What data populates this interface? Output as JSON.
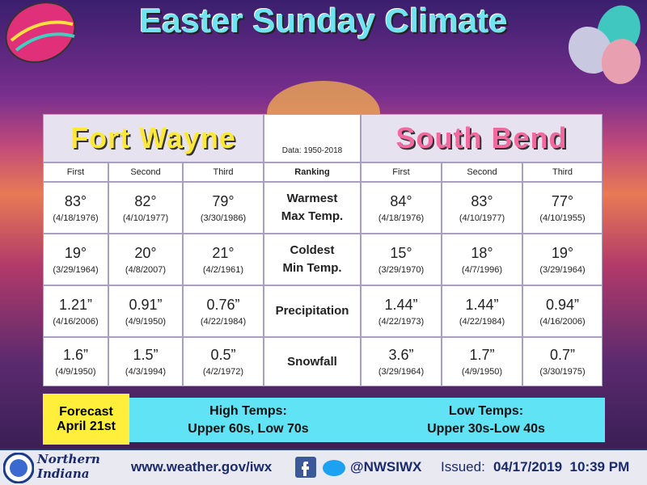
{
  "title": "Easter Sunday Climate",
  "table": {
    "left_city": "Fort Wayne",
    "right_city": "South Bend",
    "data_note": "Data: 1950-2018",
    "header": [
      "First",
      "Second",
      "Third",
      "Ranking",
      "First",
      "Second",
      "Third"
    ],
    "rows": [
      {
        "label": [
          "Warmest",
          "Max Temp."
        ],
        "fort_wayne": [
          {
            "value": "83°",
            "date": "(4/18/1976)"
          },
          {
            "value": "82°",
            "date": "(4/10/1977)"
          },
          {
            "value": "79°",
            "date": "(3/30/1986)"
          }
        ],
        "south_bend": [
          {
            "value": "84°",
            "date": "(4/18/1976)"
          },
          {
            "value": "83°",
            "date": "(4/10/1977)"
          },
          {
            "value": "77°",
            "date": "(4/10/1955)"
          }
        ]
      },
      {
        "label": [
          "Coldest",
          "Min Temp."
        ],
        "fort_wayne": [
          {
            "value": "19°",
            "date": "(3/29/1964)"
          },
          {
            "value": "20°",
            "date": "(4/8/2007)"
          },
          {
            "value": "21°",
            "date": "(4/2/1961)"
          }
        ],
        "south_bend": [
          {
            "value": "15°",
            "date": "(3/29/1970)"
          },
          {
            "value": "18°",
            "date": "(4/7/1996)"
          },
          {
            "value": "19°",
            "date": "(3/29/1964)"
          }
        ]
      },
      {
        "label": [
          "Precipitation"
        ],
        "fort_wayne": [
          {
            "value": "1.21”",
            "date": "(4/16/2006)"
          },
          {
            "value": "0.91”",
            "date": "(4/9/1950)"
          },
          {
            "value": "0.76”",
            "date": "(4/22/1984)"
          }
        ],
        "south_bend": [
          {
            "value": "1.44”",
            "date": "(4/22/1973)"
          },
          {
            "value": "1.44”",
            "date": "(4/22/1984)"
          },
          {
            "value": "0.94”",
            "date": "(4/16/2006)"
          }
        ]
      },
      {
        "label": [
          "Snowfall"
        ],
        "fort_wayne": [
          {
            "value": "1.6”",
            "date": "(4/9/1950)"
          },
          {
            "value": "1.5”",
            "date": "(4/3/1994)"
          },
          {
            "value": "0.5”",
            "date": "(4/2/1972)"
          }
        ],
        "south_bend": [
          {
            "value": "3.6”",
            "date": "(3/29/1964)"
          },
          {
            "value": "1.7”",
            "date": "(4/9/1950)"
          },
          {
            "value": "0.7”",
            "date": "(3/30/1975)"
          }
        ]
      }
    ]
  },
  "forecast": {
    "label": [
      "Forecast",
      "April 21st"
    ],
    "high": {
      "title": "High Temps:",
      "text": "Upper 60s, Low 70s"
    },
    "low": {
      "title": "Low Temps:",
      "text": "Upper 30s-Low 40s"
    }
  },
  "footer": {
    "office": [
      "Northern",
      "Indiana"
    ],
    "url": "www.weather.gov/iwx",
    "handle": "@NWSIWX",
    "issued_label": "Issued:",
    "issued": "04/17/2019  10:39 PM"
  }
}
